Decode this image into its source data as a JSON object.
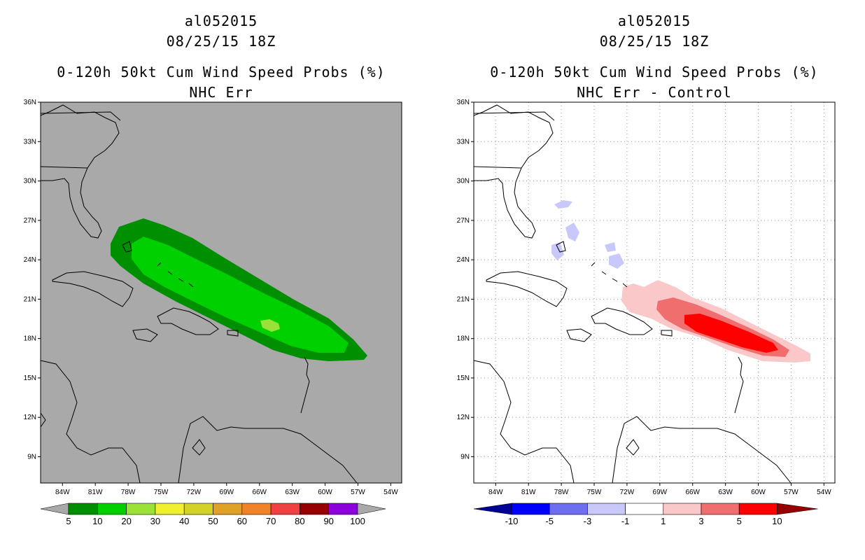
{
  "left": {
    "storm": "al052015",
    "datetime": "08/25/15 18Z",
    "product": "0-120h 50kt Cum Wind Speed Probs (%)",
    "subtitle": "NHC Err",
    "colorbar": {
      "labels": [
        "5",
        "10",
        "20",
        "30",
        "40",
        "50",
        "60",
        "70",
        "80",
        "90",
        "100"
      ],
      "colors": [
        "#008f00",
        "#00d000",
        "#9ae13a",
        "#f0f030",
        "#d2d228",
        "#e1a028",
        "#f08228",
        "#f04141",
        "#960000",
        "#8c00dc"
      ]
    }
  },
  "right": {
    "storm": "al052015",
    "datetime": "08/25/15 18Z",
    "product": "0-120h 50kt Cum Wind Speed Probs (%)",
    "subtitle": "NHC Err - Control",
    "colorbar": {
      "labels": [
        "-10",
        "-5",
        "-3",
        "-1",
        "1",
        "3",
        "5",
        "10"
      ],
      "colors": [
        "#0000ff",
        "#6e6ef0",
        "#c8c8fa",
        "#ffffff",
        "#fac8c8",
        "#f06e6e",
        "#ff0000"
      ],
      "end_low": "#000096",
      "end_high": "#960000"
    }
  },
  "chart_data": {
    "type": "map",
    "lat_labels": [
      "36N",
      "33N",
      "30N",
      "27N",
      "24N",
      "21N",
      "18N",
      "15N",
      "12N",
      "9N"
    ],
    "lon_labels": [
      "84W",
      "81W",
      "78W",
      "75W",
      "72W",
      "69W",
      "66W",
      "63W",
      "60W",
      "57W",
      "54W"
    ],
    "lon_range": [
      -86,
      -53
    ],
    "lat_range": [
      7,
      36
    ],
    "background_colors": {
      "left": "#a9a9a9",
      "right": "#ffffff"
    }
  }
}
